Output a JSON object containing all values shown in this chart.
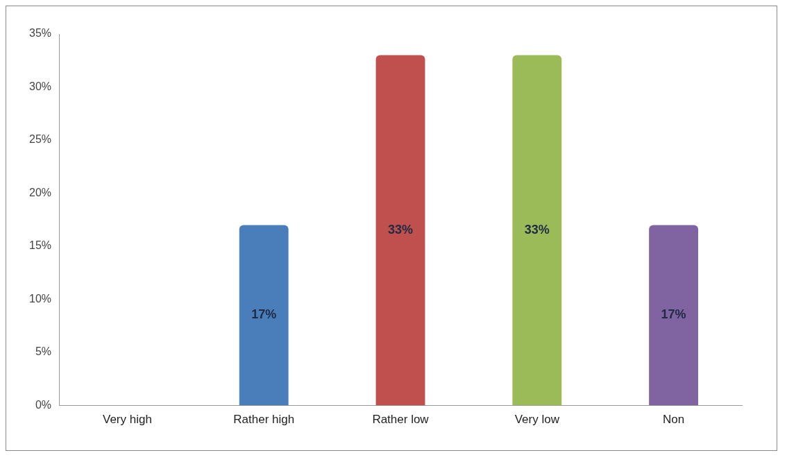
{
  "chart_data": {
    "type": "bar",
    "categories": [
      "Very high",
      "Rather high",
      "Rather low",
      "Very low",
      "Non"
    ],
    "values": [
      0,
      17,
      33,
      33,
      17
    ],
    "colors": [
      "#4a7ebb",
      "#4a7ebb",
      "#c0504d",
      "#9bbb59",
      "#8064a2"
    ],
    "value_labels": [
      null,
      "17%",
      "33%",
      "33%",
      "17%"
    ],
    "ylim": [
      0,
      35
    ],
    "yticks": [
      {
        "value": 0,
        "label": "0%"
      },
      {
        "value": 5,
        "label": "5%"
      },
      {
        "value": 10,
        "label": "10%"
      },
      {
        "value": 15,
        "label": "15%"
      },
      {
        "value": 20,
        "label": "20%"
      },
      {
        "value": 25,
        "label": "25%"
      },
      {
        "value": 30,
        "label": "30%"
      },
      {
        "value": 35,
        "label": "35%"
      }
    ],
    "grid": false,
    "legend": false
  }
}
